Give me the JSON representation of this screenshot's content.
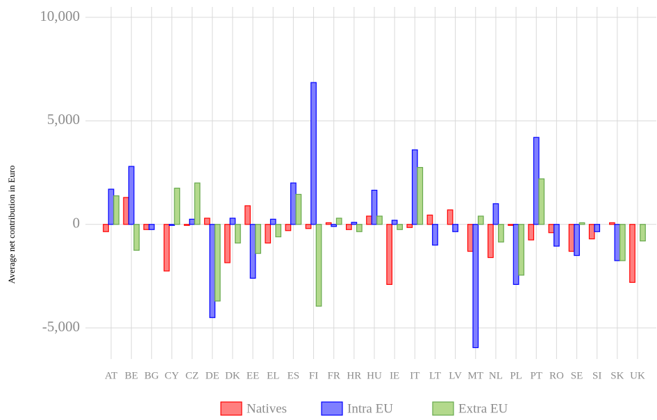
{
  "chart_data": {
    "type": "bar",
    "y_label": "Average net contribution in Euro",
    "categories": [
      "AT",
      "BE",
      "BG",
      "CY",
      "CZ",
      "DE",
      "DK",
      "EE",
      "EL",
      "ES",
      "FI",
      "FR",
      "HR",
      "HU",
      "IE",
      "IT",
      "LT",
      "LV",
      "MT",
      "NL",
      "PL",
      "PT",
      "RO",
      "SE",
      "SI",
      "SK",
      "UK"
    ],
    "series": [
      {
        "name": "Natives",
        "color": "#ff7f7f",
        "edge_color": "#ff0000",
        "values": [
          -350,
          1300,
          -250,
          -2250,
          -50,
          300,
          -1850,
          900,
          -900,
          -300,
          -200,
          80,
          -250,
          400,
          -2900,
          -150,
          450,
          700,
          -1300,
          -1600,
          -50,
          -750,
          -400,
          -1300,
          -700,
          80,
          -2800
        ]
      },
      {
        "name": "Intra EU",
        "color": "#7f7fff",
        "edge_color": "#0000ff",
        "values": [
          1700,
          2800,
          -250,
          -50,
          250,
          -4500,
          300,
          -2600,
          250,
          2000,
          6850,
          -100,
          100,
          1650,
          200,
          3600,
          -1000,
          -350,
          -5950,
          1000,
          -2900,
          4200,
          -1050,
          -1500,
          -350,
          -1750,
          0
        ]
      },
      {
        "name": "Extra EU",
        "color": "#b3d98c",
        "edge_color": "#66a84c",
        "values": [
          1380,
          -1250,
          0,
          1750,
          2000,
          -3700,
          -900,
          -1400,
          -600,
          1450,
          -3950,
          300,
          -350,
          400,
          -250,
          2750,
          0,
          0,
          400,
          -850,
          -2450,
          2200,
          0,
          80,
          0,
          -1750,
          -800
        ]
      }
    ],
    "ylim": [
      -6500,
      10500
    ],
    "yticks": [
      {
        "value": -5000,
        "label": "-5,000"
      },
      0,
      {
        "value": 5000,
        "label": "5,000"
      },
      {
        "value": 10000,
        "label": "10,000"
      }
    ],
    "grid": true,
    "legend": "bottom"
  }
}
